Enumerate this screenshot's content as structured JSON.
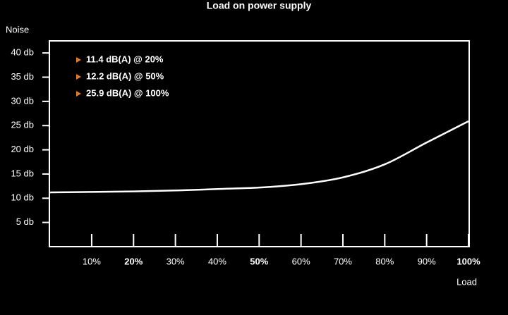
{
  "chart_data": {
    "type": "line",
    "title": "Load on power supply",
    "y_label": "Noise",
    "x_label": "Load",
    "x": [
      0,
      10,
      20,
      30,
      40,
      50,
      60,
      70,
      80,
      90,
      100
    ],
    "series": [
      {
        "color": "#ffffff",
        "values": [
          11.2,
          11.3,
          11.4,
          11.6,
          11.9,
          12.2,
          12.9,
          14.3,
          17.0,
          21.5,
          25.9
        ]
      }
    ],
    "xlim": [
      0,
      100
    ],
    "ylim": [
      0,
      42.5
    ],
    "xticks": [
      {
        "value": 10,
        "label": "10%"
      },
      {
        "value": 20,
        "label": "20%",
        "bold": true
      },
      {
        "value": 30,
        "label": "30%"
      },
      {
        "value": 40,
        "label": "40%"
      },
      {
        "value": 50,
        "label": "50%",
        "bold": true
      },
      {
        "value": 60,
        "label": "60%"
      },
      {
        "value": 70,
        "label": "70%"
      },
      {
        "value": 80,
        "label": "80%"
      },
      {
        "value": 90,
        "label": "90%"
      },
      {
        "value": 100,
        "label": "100%",
        "bold": true
      }
    ],
    "yticks": [
      {
        "value": 5,
        "label": "5 db"
      },
      {
        "value": 10,
        "label": "10 db"
      },
      {
        "value": 15,
        "label": "15 db"
      },
      {
        "value": 20,
        "label": "20 db"
      },
      {
        "value": 25,
        "label": "25 db"
      },
      {
        "value": 30,
        "label": "30 db"
      },
      {
        "value": 35,
        "label": "35 db"
      },
      {
        "value": 40,
        "label": "40 db"
      }
    ],
    "annotations": [
      "11.4 dB(A) @ 20%",
      "12.2 dB(A) @ 50%",
      "25.9 dB(A) @ 100%"
    ],
    "annotation_marker_color": "#e07b2a"
  }
}
